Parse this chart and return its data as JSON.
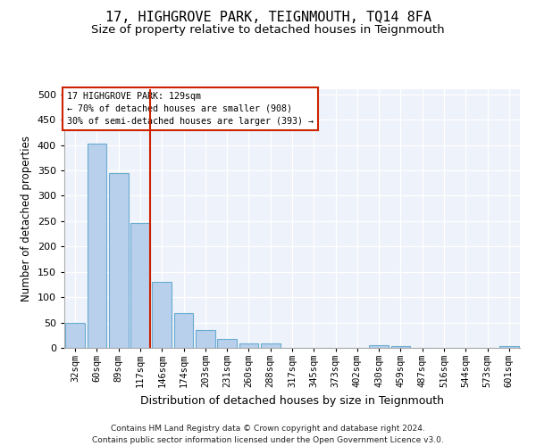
{
  "title": "17, HIGHGROVE PARK, TEIGNMOUTH, TQ14 8FA",
  "subtitle": "Size of property relative to detached houses in Teignmouth",
  "xlabel": "Distribution of detached houses by size in Teignmouth",
  "ylabel": "Number of detached properties",
  "footnote": "Contains HM Land Registry data © Crown copyright and database right 2024.\nContains public sector information licensed under the Open Government Licence v3.0.",
  "categories": [
    "32sqm",
    "60sqm",
    "89sqm",
    "117sqm",
    "146sqm",
    "174sqm",
    "203sqm",
    "231sqm",
    "260sqm",
    "288sqm",
    "317sqm",
    "345sqm",
    "373sqm",
    "402sqm",
    "430sqm",
    "459sqm",
    "487sqm",
    "516sqm",
    "544sqm",
    "573sqm",
    "601sqm"
  ],
  "values": [
    50,
    402,
    344,
    247,
    130,
    69,
    35,
    18,
    8,
    8,
    0,
    0,
    0,
    0,
    5,
    4,
    0,
    0,
    0,
    0,
    3
  ],
  "bar_color": "#b8d0eb",
  "bar_edge_color": "#6aabd2",
  "red_line_after_index": 3,
  "property_line_label": "17 HIGHGROVE PARK: 129sqm",
  "annotation_line2": "← 70% of detached houses are smaller (908)",
  "annotation_line3": "30% of semi-detached houses are larger (393) →",
  "annotation_box_color": "#ffffff",
  "annotation_box_edge_color": "#cc2200",
  "line_color": "#cc2200",
  "ylim": [
    0,
    510
  ],
  "yticks": [
    0,
    50,
    100,
    150,
    200,
    250,
    300,
    350,
    400,
    450,
    500
  ],
  "bg_color": "#eef2fa",
  "fig_bg_color": "#ffffff",
  "title_fontsize": 11,
  "subtitle_fontsize": 9.5,
  "ylabel_fontsize": 8.5,
  "xlabel_fontsize": 9,
  "tick_fontsize": 7.5,
  "footnote_fontsize": 6.5
}
